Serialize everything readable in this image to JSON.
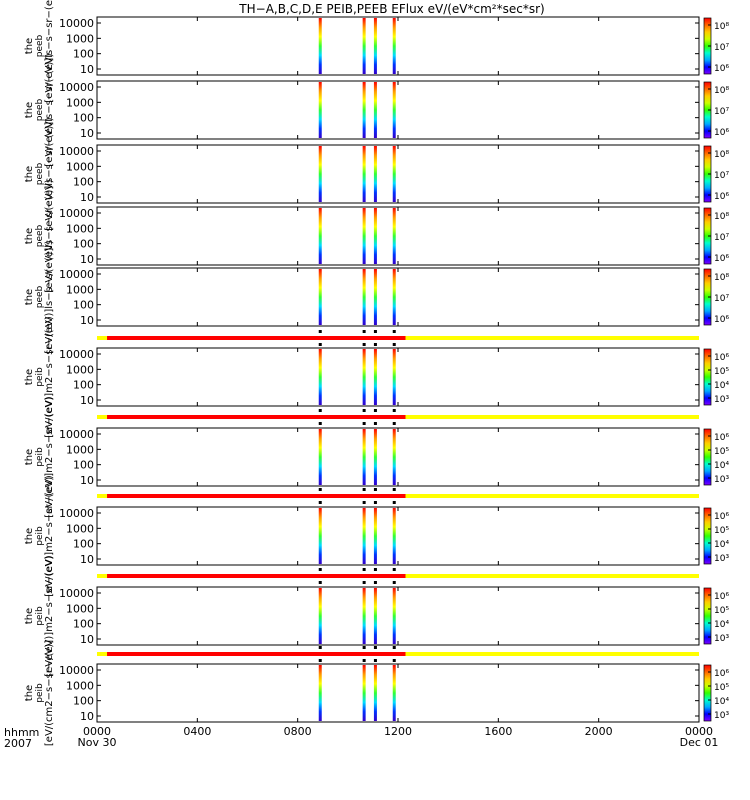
{
  "title": "TH−A,B,C,D,E PEIB,PEEB EFlux eV/(eV*cm²*sec*sr)",
  "colors": {
    "bar_red": "#ff0000",
    "bar_yellow": "#ffff00",
    "colormap": [
      "#7f00ff",
      "#0000ff",
      "#00aaff",
      "#00ffcc",
      "#33ff00",
      "#ccff00",
      "#ffcc00",
      "#ff6600",
      "#ff0000"
    ]
  },
  "x_axis": {
    "ticks": [
      "0000",
      "0400",
      "0800",
      "1200",
      "1600",
      "2000",
      "0000"
    ],
    "tick_hours": [
      0,
      4,
      8,
      12,
      16,
      20,
      24
    ],
    "dates": [
      "Nov 30",
      "Dec 01"
    ],
    "label": "hhmm",
    "year": "2007"
  },
  "chart_data": {
    "type": "heatmap",
    "x_unit": "hour of day",
    "xlim": [
      0,
      24
    ],
    "spectrogram_panels": [
      {
        "ylabel_lines": [
          "the",
          "peeb",
          "[eV/(eV)]ls−s−sr−(eV)"
        ],
        "yticks": [
          "10000",
          "1000",
          "100",
          "10"
        ],
        "colorbar_ticks": [
          "10⁸",
          "10⁷",
          "10⁶"
        ]
      },
      {
        "ylabel_lines": [
          "the",
          "peeb",
          "[eV/(eV)]ls−s−sr−(eV)"
        ],
        "yticks": [
          "10000",
          "1000",
          "100",
          "10"
        ],
        "colorbar_ticks": [
          "10⁸",
          "10⁷",
          "10⁶"
        ]
      },
      {
        "ylabel_lines": [
          "the",
          "peeb",
          "[eV/(eV)]ls−s−sr−(eV)"
        ],
        "yticks": [
          "10000",
          "1000",
          "100",
          "10"
        ],
        "colorbar_ticks": [
          "10⁸",
          "10⁷",
          "10⁶"
        ]
      },
      {
        "ylabel_lines": [
          "the",
          "peeb",
          "[eV/(eV)]ls−s−sr−(eV)"
        ],
        "yticks": [
          "10000",
          "1000",
          "100",
          "10"
        ],
        "colorbar_ticks": [
          "10⁸",
          "10⁷",
          "10⁶"
        ]
      },
      {
        "ylabel_lines": [
          "the",
          "peeb",
          "[eV/(eV)]ls−s−sr−(eV)"
        ],
        "yticks": [
          "10000",
          "1000",
          "100",
          "10"
        ],
        "colorbar_ticks": [
          "10⁸",
          "10⁷",
          "10⁶"
        ]
      },
      {
        "ylabel_lines": [
          "the",
          "peib",
          "[eV/(eV)]m2−s−sr−(eV)"
        ],
        "yticks": [
          "10000",
          "1000",
          "100",
          "10"
        ],
        "colorbar_ticks": [
          "10⁶",
          "10⁵",
          "10⁴",
          "10³"
        ]
      },
      {
        "ylabel_lines": [
          "the",
          "peib",
          "[eV/(eV)]m2−s−sr−(eV)"
        ],
        "yticks": [
          "10000",
          "1000",
          "100",
          "10"
        ],
        "colorbar_ticks": [
          "10⁶",
          "10⁵",
          "10⁴",
          "10³"
        ]
      },
      {
        "ylabel_lines": [
          "the",
          "peib",
          "[eV/(eV)]m2−s−sr−(eV)"
        ],
        "yticks": [
          "10000",
          "1000",
          "100",
          "10"
        ],
        "colorbar_ticks": [
          "10⁶",
          "10⁵",
          "10⁴",
          "10³"
        ]
      },
      {
        "ylabel_lines": [
          "the",
          "peib",
          "[eV/(eV)]m2−s−sr−(eV)"
        ],
        "yticks": [
          "10000",
          "1000",
          "100",
          "10"
        ],
        "colorbar_ticks": [
          "10⁶",
          "10⁵",
          "10⁴",
          "10³"
        ]
      },
      {
        "ylabel_lines": [
          "the",
          "peib",
          "[eV/(cm2−s−sr−eV)]"
        ],
        "yticks": [
          "10000",
          "1000",
          "100",
          "10"
        ],
        "colorbar_ticks": [
          "10⁶",
          "10⁵",
          "10⁴",
          "10³"
        ]
      }
    ],
    "data_bursts_hours": [
      8.9,
      10.65,
      11.1,
      11.85
    ],
    "status_bars": {
      "count": 5,
      "segments": [
        {
          "start_hour": 0.4,
          "end_hour": 12.3,
          "color": "red"
        },
        {
          "start_hour": 12.3,
          "end_hour": 24.0,
          "color": "yellow"
        }
      ],
      "markers_hours": [
        8.9,
        10.65,
        11.1,
        11.85
      ]
    }
  }
}
